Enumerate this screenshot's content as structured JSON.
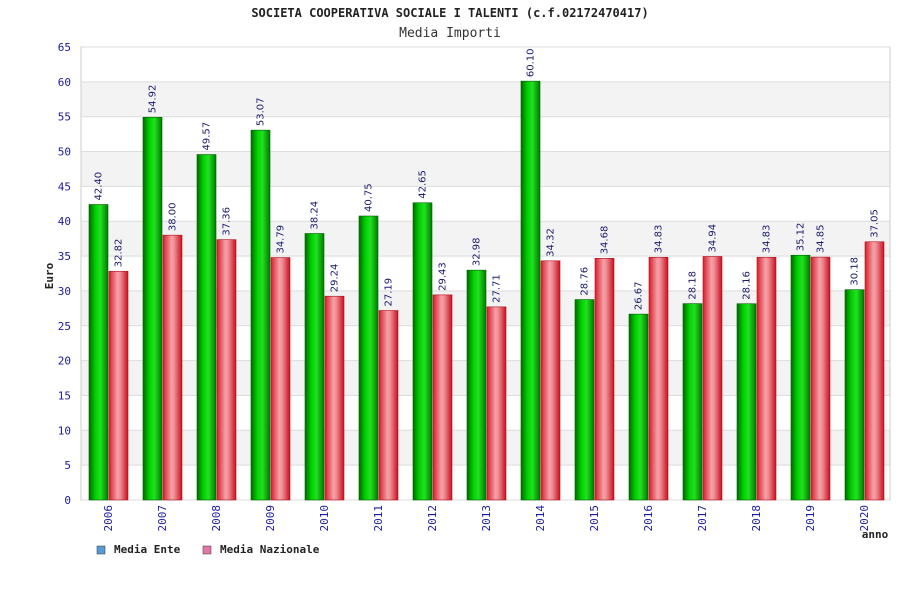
{
  "chart_data": {
    "type": "bar",
    "title": "SOCIETA COOPERATIVA SOCIALE I TALENTI (c.f.02172470417)",
    "subtitle": "Media Importi",
    "ylabel": "Euro",
    "xlabel": "anno",
    "ylim": [
      0,
      65
    ],
    "ytick_step": 5,
    "grid": "horizontal bands",
    "legend_position": "bottom-left",
    "categories": [
      "2006",
      "2007",
      "2008",
      "2009",
      "2010",
      "2011",
      "2012",
      "2013",
      "2014",
      "2015",
      "2016",
      "2017",
      "2018",
      "2019",
      "2020"
    ],
    "series": [
      {
        "name": "Media Ente",
        "color": "#00b000",
        "legend_color": "#5b9bd5",
        "values": [
          42.4,
          54.92,
          49.57,
          53.07,
          38.24,
          40.75,
          42.65,
          32.98,
          60.1,
          28.76,
          26.67,
          28.18,
          28.16,
          35.12,
          30.18
        ],
        "labels": [
          "42.40",
          "54.92",
          "49.57",
          "53.07",
          "38.24",
          "40.75",
          "42.65",
          "32.98",
          "60.10",
          "28.76",
          "26.67",
          "28.18",
          "28.16",
          "35.12",
          "30.18"
        ]
      },
      {
        "name": "Media Nazionale",
        "color": "#e0303a",
        "legend_color": "#e377a8",
        "values": [
          32.82,
          38.0,
          37.36,
          34.79,
          29.24,
          27.19,
          29.43,
          27.71,
          34.32,
          34.68,
          34.83,
          34.94,
          34.83,
          34.85,
          37.05
        ],
        "labels": [
          "32.82",
          "38.00",
          "37.36",
          "34.79",
          "29.24",
          "27.19",
          "29.43",
          "27.71",
          "34.32",
          "34.68",
          "34.83",
          "34.94",
          "34.83",
          "34.85",
          "37.05"
        ]
      }
    ]
  }
}
